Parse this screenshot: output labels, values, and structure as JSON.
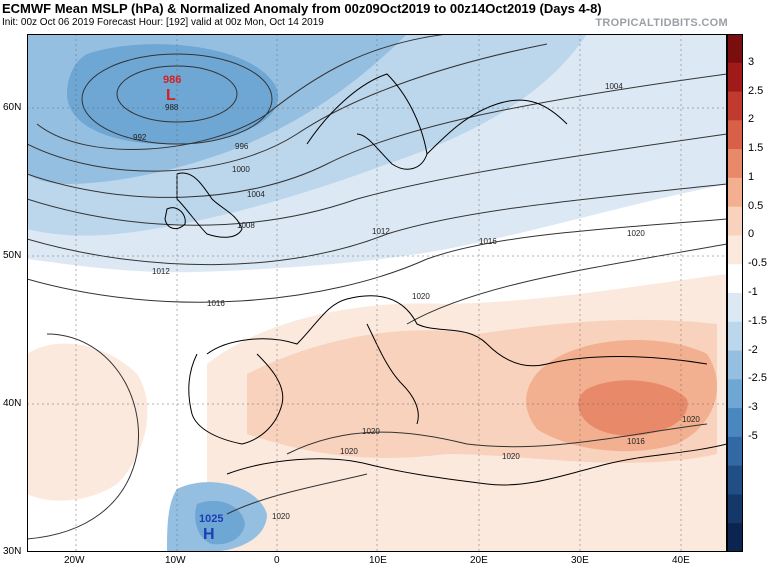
{
  "header": {
    "title": "ECMWF Mean MSLP (hPa) & Normalized Anomaly from 00z09Oct2019 to 00z14Oct2019 (Days 4-8)",
    "subtitle": "Init: 00z Oct 06 2019   Forecast Hour: [192]   valid at 00z Mon, Oct 14 2019",
    "brand": "TROPICALTIDBITS.COM"
  },
  "map": {
    "lat_labels": [
      "60N",
      "50N",
      "40N",
      "30N"
    ],
    "lon_labels": [
      "20W",
      "10W",
      "0",
      "10E",
      "20E",
      "30E",
      "40E"
    ],
    "isobar_labels": [
      "992",
      "996",
      "1000",
      "1004",
      "1008",
      "1012",
      "1016",
      "1020",
      "1004",
      "1012",
      "1016",
      "1020",
      "1020",
      "1020",
      "1020",
      "1016",
      "1020",
      "1020",
      "1024",
      "1020",
      "988"
    ],
    "low_center": {
      "letter": "L",
      "value": "986"
    },
    "high_center": {
      "letter": "H",
      "value": "1025"
    }
  },
  "colorbar": {
    "ticks": [
      "3",
      "2.5",
      "2",
      "1.5",
      "1",
      "0.5",
      "0",
      "-0.5",
      "-1",
      "-1.5",
      "-2",
      "-2.5",
      "-3",
      "-5"
    ],
    "colors": [
      "#7a0d0d",
      "#a01a1a",
      "#c03a30",
      "#d86048",
      "#e88a6a",
      "#f2b090",
      "#f8d2bc",
      "#fbe9de",
      "#ffffff",
      "#dce9f4",
      "#bcd6ec",
      "#95bfe1",
      "#6ea6d4",
      "#4b87bf",
      "#3268a3",
      "#224e86",
      "#163868",
      "#0c2550"
    ]
  }
}
